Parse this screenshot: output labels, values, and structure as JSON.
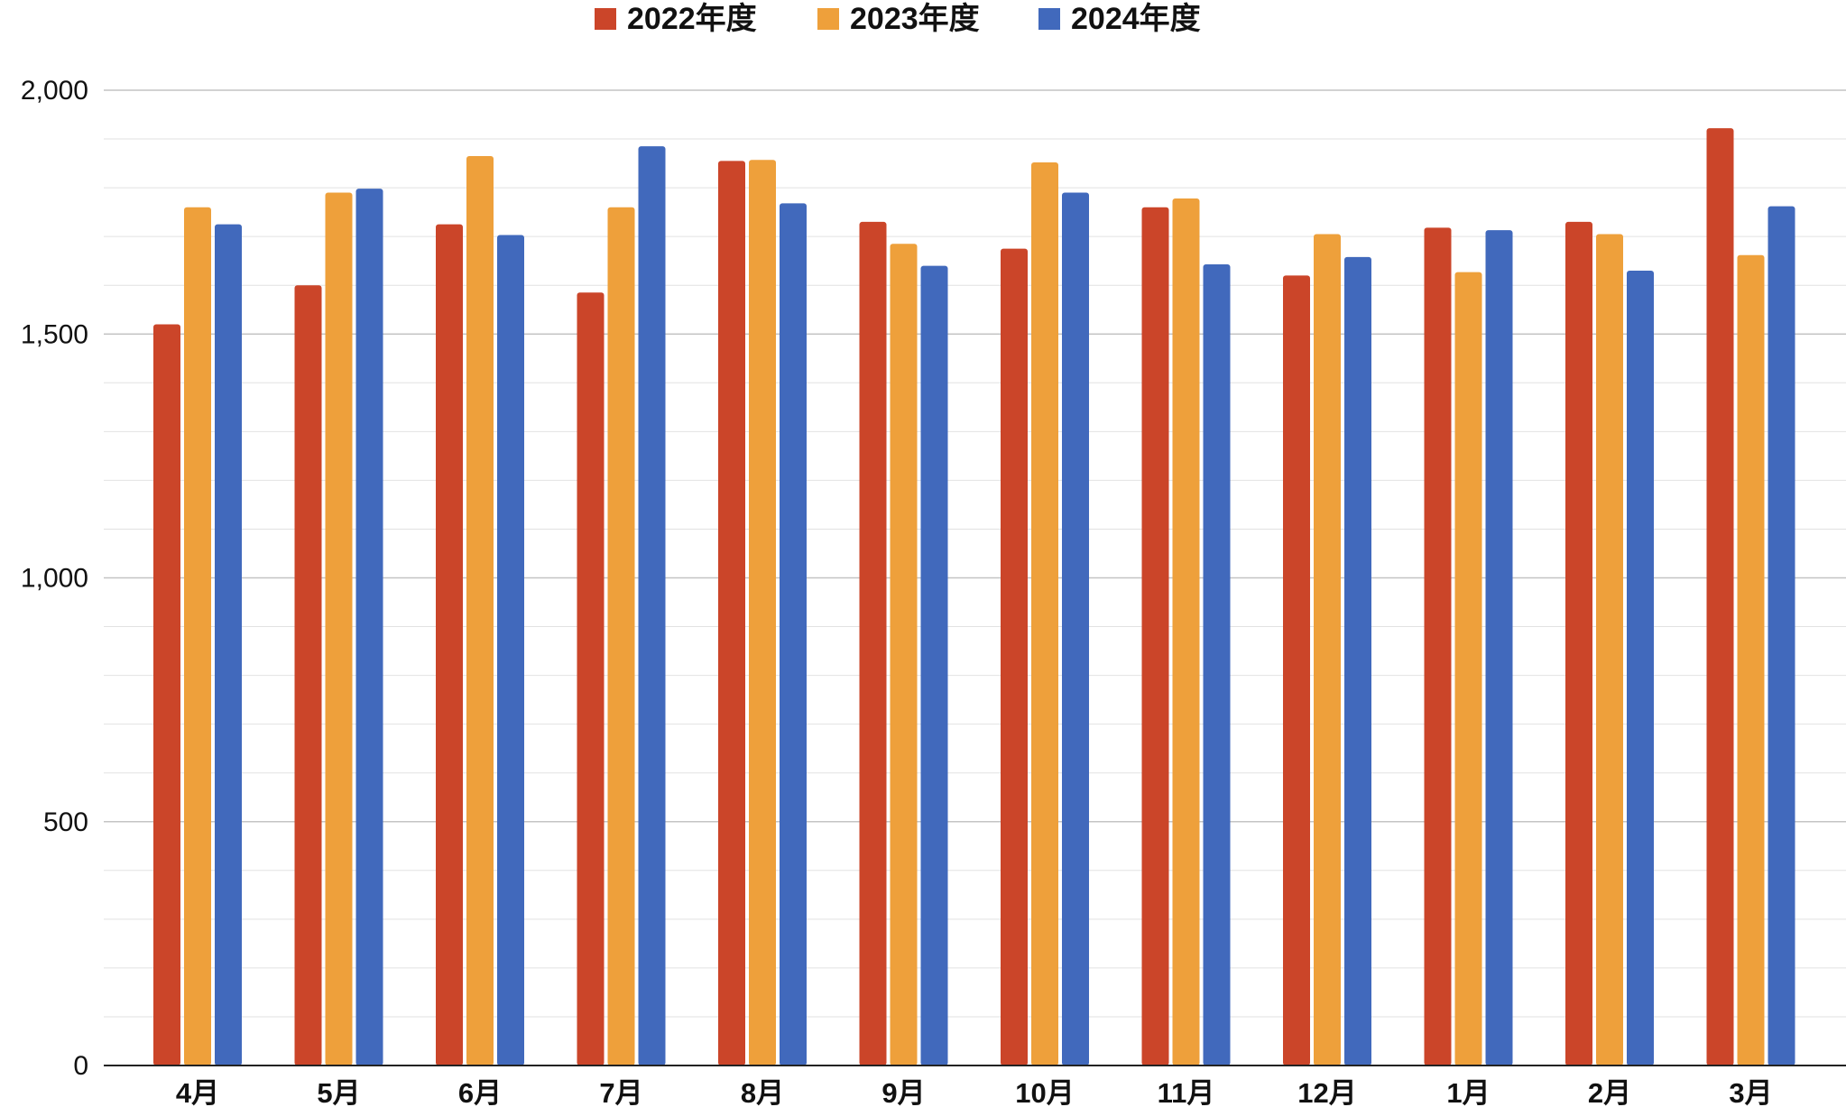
{
  "chart_data": {
    "type": "bar",
    "categories": [
      "4月",
      "5月",
      "6月",
      "7月",
      "8月",
      "9月",
      "10月",
      "11月",
      "12月",
      "1月",
      "2月",
      "3月"
    ],
    "series": [
      {
        "name": "2022年度",
        "color": "#cb4529",
        "values": [
          1520,
          1600,
          1725,
          1585,
          1855,
          1730,
          1675,
          1760,
          1620,
          1718,
          1730,
          1922
        ]
      },
      {
        "name": "2023年度",
        "color": "#eea03b",
        "values": [
          1760,
          1790,
          1865,
          1760,
          1857,
          1685,
          1852,
          1778,
          1705,
          1627,
          1705,
          1662
        ]
      },
      {
        "name": "2024年度",
        "color": "#4169bc",
        "values": [
          1725,
          1798,
          1703,
          1885,
          1768,
          1640,
          1790,
          1643,
          1658,
          1713,
          1630,
          1762
        ]
      }
    ],
    "ylim": [
      0,
      2000
    ],
    "y_ticks": [
      0,
      500,
      1000,
      1500,
      2000
    ],
    "y_tick_labels": [
      "0",
      "500",
      "1,000",
      "1,500",
      "2,000"
    ],
    "minor_grid_step": 100,
    "grid": true,
    "legend_position": "top-center",
    "title": "",
    "xlabel": "",
    "ylabel": ""
  }
}
